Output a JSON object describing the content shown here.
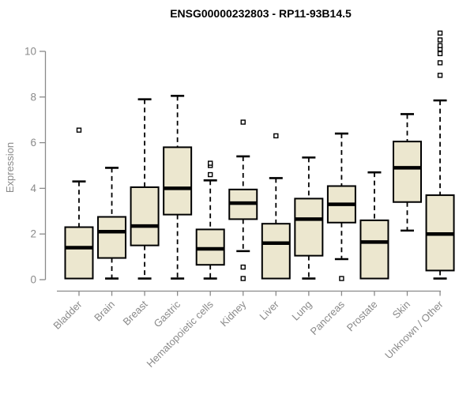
{
  "page": {
    "background": "#ffffff"
  },
  "chart_data": {
    "type": "boxplot",
    "title": "ENSG00000232803 - RP11-93B14.5",
    "ylabel": "Expression",
    "xlabel": "",
    "ylim": [
      0,
      10.9
    ],
    "yticks": [
      0,
      2,
      4,
      6,
      8,
      10
    ],
    "grid": false,
    "legend": null,
    "categories": [
      "Bladder",
      "Brain",
      "Breast",
      "Gastric",
      "Hematopoietic cells",
      "Kidney",
      "Liver",
      "Lung",
      "Pancreas",
      "Prostate",
      "Skin",
      "Unknown / Other"
    ],
    "boxes": [
      {
        "category": "Bladder",
        "low": 0.05,
        "q1": 0.05,
        "median": 1.4,
        "q3": 2.3,
        "high": 4.3,
        "outliers": [
          6.55
        ]
      },
      {
        "category": "Brain",
        "low": 0.05,
        "q1": 0.95,
        "median": 2.1,
        "q3": 2.75,
        "high": 4.9,
        "outliers": []
      },
      {
        "category": "Breast",
        "low": 0.05,
        "q1": 1.5,
        "median": 2.35,
        "q3": 4.05,
        "high": 7.9,
        "outliers": []
      },
      {
        "category": "Gastric",
        "low": 0.05,
        "q1": 2.85,
        "median": 4.0,
        "q3": 5.8,
        "high": 8.05,
        "outliers": []
      },
      {
        "category": "Hematopoietic cells",
        "low": 0.05,
        "q1": 0.65,
        "median": 1.35,
        "q3": 2.2,
        "high": 4.35,
        "outliers": [
          4.6,
          5.0,
          5.1
        ]
      },
      {
        "category": "Kidney",
        "low": 1.25,
        "q1": 2.65,
        "median": 3.35,
        "q3": 3.95,
        "high": 5.4,
        "outliers": [
          6.9,
          0.55,
          0.05
        ]
      },
      {
        "category": "Liver",
        "low": 0.05,
        "q1": 0.05,
        "median": 1.6,
        "q3": 2.45,
        "high": 4.45,
        "outliers": [
          6.3
        ]
      },
      {
        "category": "Lung",
        "low": 0.05,
        "q1": 1.05,
        "median": 2.65,
        "q3": 3.55,
        "high": 5.35,
        "outliers": []
      },
      {
        "category": "Pancreas",
        "low": 0.9,
        "q1": 2.5,
        "median": 3.3,
        "q3": 4.1,
        "high": 6.4,
        "outliers": [
          0.05
        ]
      },
      {
        "category": "Prostate",
        "low": 0.05,
        "q1": 0.05,
        "median": 1.65,
        "q3": 2.6,
        "high": 4.7,
        "outliers": []
      },
      {
        "category": "Skin",
        "low": 2.15,
        "q1": 3.4,
        "median": 4.9,
        "q3": 6.05,
        "high": 7.25,
        "outliers": []
      },
      {
        "category": "Unknown / Other",
        "low": 0.05,
        "q1": 0.4,
        "median": 2.0,
        "q3": 3.7,
        "high": 7.85,
        "outliers": [
          8.95,
          9.5,
          9.9,
          10.1,
          10.25,
          10.5,
          10.8
        ]
      }
    ],
    "style": {
      "box_fill": "#ece7cf",
      "box_border": "#000000",
      "median_color": "#000000",
      "whisker_color": "#000000",
      "outlier_shape": "open-square",
      "axis_color": "#8a8a8a",
      "axis_text_color": "#8a8a8a",
      "title_color": "#000000"
    }
  }
}
